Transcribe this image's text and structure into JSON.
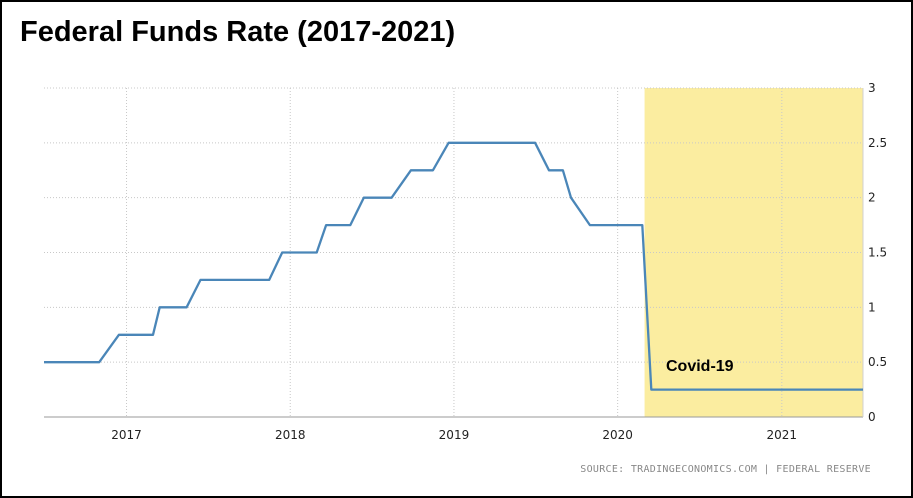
{
  "chart_data": {
    "type": "line",
    "title": "Federal Funds Rate (2017-2021)",
    "xlabel": "",
    "ylabel": "",
    "ylim": [
      0,
      3
    ],
    "y_ticks": [
      "0",
      "0.5",
      "1",
      "1.5",
      "2",
      "2.5",
      "3"
    ],
    "x_ticks": [
      "2017",
      "2018",
      "2019",
      "2020",
      "2021"
    ],
    "x_range": [
      "2016-07-01",
      "2021-07-01"
    ],
    "grid": true,
    "line_color": "#4a86b8",
    "series": [
      {
        "values": [
          {
            "x": "2016-07-01",
            "y": 0.5
          },
          {
            "x": "2016-11-01",
            "y": 0.5
          },
          {
            "x": "2016-12-15",
            "y": 0.75
          },
          {
            "x": "2017-03-01",
            "y": 0.75
          },
          {
            "x": "2017-03-16",
            "y": 1.0
          },
          {
            "x": "2017-05-15",
            "y": 1.0
          },
          {
            "x": "2017-06-15",
            "y": 1.25
          },
          {
            "x": "2017-11-15",
            "y": 1.25
          },
          {
            "x": "2017-12-14",
            "y": 1.5
          },
          {
            "x": "2018-03-01",
            "y": 1.5
          },
          {
            "x": "2018-03-22",
            "y": 1.75
          },
          {
            "x": "2018-05-15",
            "y": 1.75
          },
          {
            "x": "2018-06-14",
            "y": 2.0
          },
          {
            "x": "2018-08-15",
            "y": 2.0
          },
          {
            "x": "2018-09-27",
            "y": 2.25
          },
          {
            "x": "2018-11-15",
            "y": 2.25
          },
          {
            "x": "2018-12-20",
            "y": 2.5
          },
          {
            "x": "2019-07-01",
            "y": 2.5
          },
          {
            "x": "2019-08-01",
            "y": 2.25
          },
          {
            "x": "2019-09-01",
            "y": 2.25
          },
          {
            "x": "2019-09-19",
            "y": 2.0
          },
          {
            "x": "2019-10-31",
            "y": 1.75
          },
          {
            "x": "2020-02-25",
            "y": 1.75
          },
          {
            "x": "2020-03-16",
            "y": 0.25
          },
          {
            "x": "2021-07-01",
            "y": 0.25
          }
        ]
      }
    ],
    "highlight": {
      "label": "Covid-19",
      "x_start": "2020-03-01",
      "x_end": "2021-07-01",
      "color": "#fbeda0"
    }
  },
  "source": "SOURCE: TRADINGECONOMICS.COM | FEDERAL RESERVE"
}
